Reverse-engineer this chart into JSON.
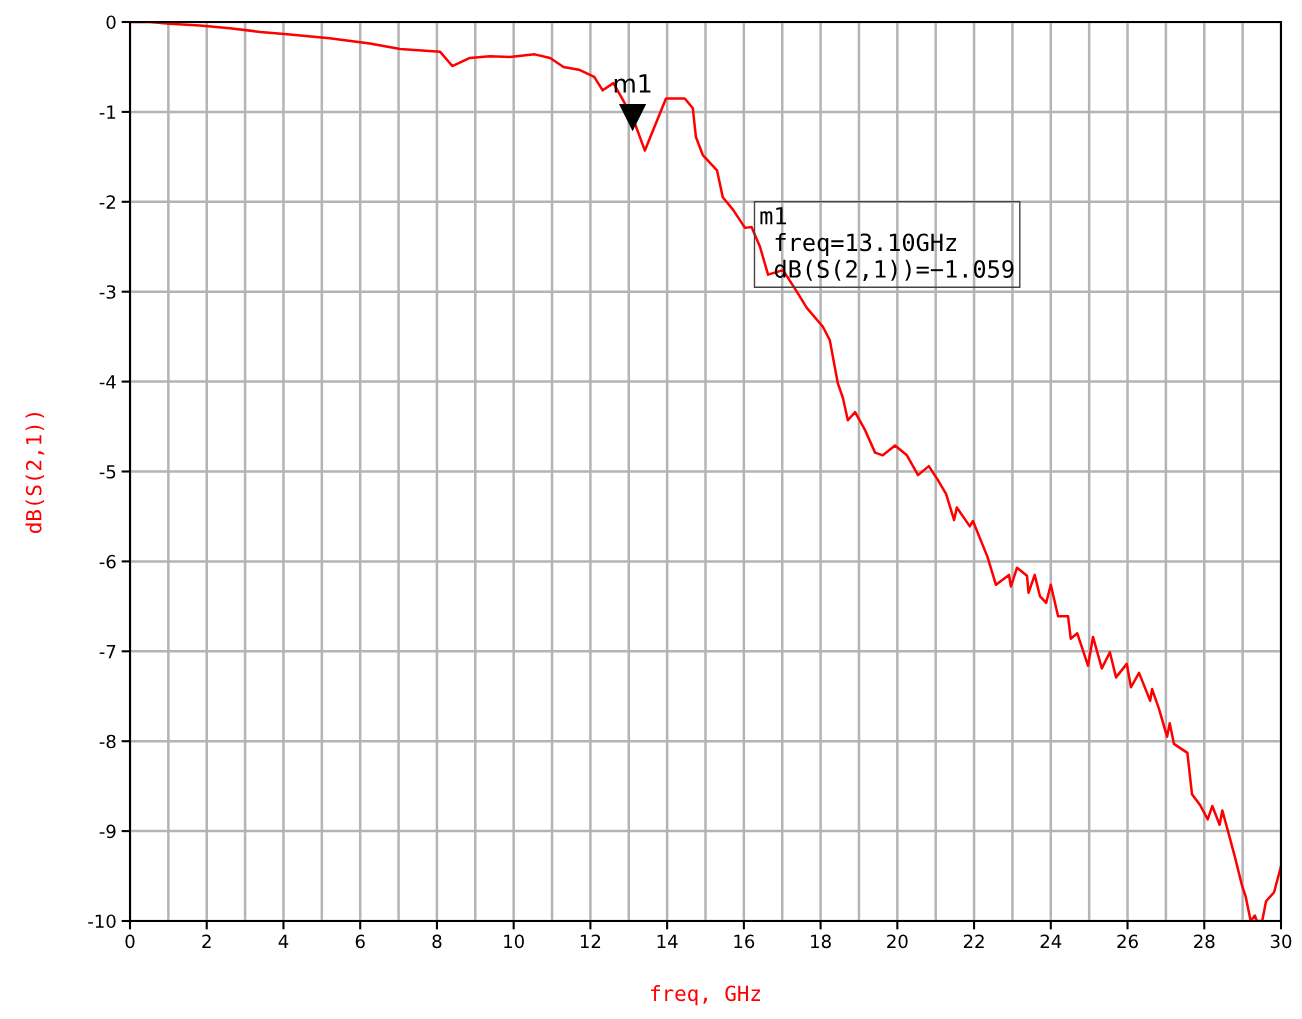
{
  "chart_data": {
    "type": "line",
    "xlabel": "freq, GHz",
    "ylabel": "dB(S(2,1))",
    "xlim": [
      0,
      30
    ],
    "ylim": [
      -10,
      0
    ],
    "xticks": [
      0,
      {
        "value": 1,
        "label": null
      },
      2,
      {
        "value": 3,
        "label": null
      },
      4,
      {
        "value": 5,
        "label": null
      },
      6,
      {
        "value": 7,
        "label": null
      },
      8,
      {
        "value": 9,
        "label": null
      },
      10,
      {
        "value": 11,
        "label": null
      },
      12,
      {
        "value": 13,
        "label": null
      },
      14,
      {
        "value": 15,
        "label": null
      },
      16,
      {
        "value": 17,
        "label": null
      },
      18,
      {
        "value": 19,
        "label": null
      },
      20,
      {
        "value": 21,
        "label": null
      },
      22,
      {
        "value": 23,
        "label": null
      },
      24,
      {
        "value": 25,
        "label": null
      },
      26,
      {
        "value": 27,
        "label": null
      },
      28,
      {
        "value": 29,
        "label": null
      },
      30
    ],
    "yticks": [
      -10,
      -9,
      -8,
      -7,
      -6,
      -5,
      -4,
      -3,
      -2,
      -1,
      0
    ],
    "grid": true,
    "marker": "none",
    "line_style": "solid",
    "series": [
      {
        "color": "#ff0000",
        "x": [
          0,
          0.52,
          1.04,
          1.82,
          2.6,
          3.4,
          4.17,
          5.2,
          6.25,
          7.04,
          8.08,
          8.4,
          8.86,
          9.38,
          9.9,
          10.55,
          10.95,
          11.3,
          11.7,
          12.1,
          12.32,
          12.6,
          13.1,
          13.42,
          13.97,
          14.46,
          14.67,
          14.75,
          14.93,
          15.3,
          15.45,
          15.72,
          16.03,
          16.2,
          16.42,
          16.63,
          17.02,
          17.38,
          17.64,
          18.06,
          18.24,
          18.45,
          18.58,
          18.71,
          18.9,
          19.16,
          19.42,
          19.62,
          19.94,
          20.25,
          20.54,
          20.82,
          21.05,
          21.27,
          21.48,
          21.55,
          21.89,
          21.97,
          22.35,
          22.57,
          22.91,
          22.96,
          23.12,
          23.38,
          23.42,
          23.58,
          23.72,
          23.88,
          24.0,
          24.19,
          24.45,
          24.52,
          24.69,
          24.97,
          25.1,
          25.33,
          25.54,
          25.7,
          25.98,
          26.09,
          26.3,
          26.59,
          26.64,
          26.82,
          27.03,
          27.1,
          27.21,
          27.56,
          27.68,
          27.89,
          28.09,
          28.21,
          28.4,
          28.47,
          28.63,
          28.8,
          28.98,
          29.08,
          29.21,
          29.32,
          29.37,
          29.51,
          29.61,
          29.82,
          30
        ],
        "values": [
          0,
          0,
          -0.02,
          -0.04,
          -0.07,
          -0.11,
          -0.14,
          -0.18,
          -0.24,
          -0.3,
          -0.33,
          -0.49,
          -0.4,
          -0.38,
          -0.39,
          -0.36,
          -0.4,
          -0.5,
          -0.53,
          -0.61,
          -0.76,
          -0.68,
          -1.059,
          -1.43,
          -0.85,
          -0.85,
          -0.96,
          -1.28,
          -1.48,
          -1.65,
          -1.95,
          -2.09,
          -2.29,
          -2.28,
          -2.5,
          -2.81,
          -2.76,
          -3.0,
          -3.18,
          -3.39,
          -3.54,
          -4.02,
          -4.18,
          -4.43,
          -4.34,
          -4.54,
          -4.79,
          -4.82,
          -4.71,
          -4.82,
          -5.04,
          -4.94,
          -5.09,
          -5.25,
          -5.54,
          -5.4,
          -5.61,
          -5.55,
          -5.95,
          -6.26,
          -6.15,
          -6.28,
          -6.07,
          -6.16,
          -6.35,
          -6.15,
          -6.39,
          -6.46,
          -6.26,
          -6.61,
          -6.61,
          -6.86,
          -6.8,
          -7.16,
          -6.84,
          -7.19,
          -7.01,
          -7.29,
          -7.14,
          -7.4,
          -7.24,
          -7.55,
          -7.42,
          -7.64,
          -7.95,
          -7.8,
          -8.03,
          -8.13,
          -8.59,
          -8.71,
          -8.87,
          -8.72,
          -8.93,
          -8.77,
          -9.02,
          -9.29,
          -9.6,
          -9.73,
          -10,
          -9.94,
          -10,
          -10,
          -9.78,
          -9.68,
          -9.39
        ]
      }
    ],
    "annotations": [
      {
        "text": "m1",
        "x": 13.1,
        "y": -1.059
      },
      "m1\n freq=13.10GHz\n dB(S(2,1))=−1.059"
    ]
  }
}
